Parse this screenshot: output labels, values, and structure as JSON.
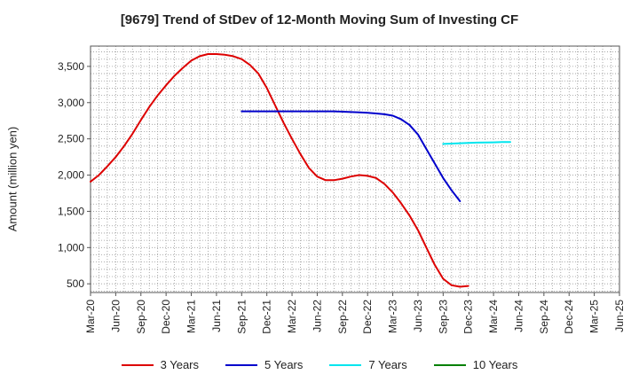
{
  "chart_data": {
    "type": "line",
    "title": "[9679]  Trend of StDev of 12-Month Moving Sum of Investing CF",
    "xlabel": "",
    "ylabel": "Amount (million yen)",
    "ylim": [
      380,
      3780
    ],
    "yticks": [
      500,
      1000,
      1500,
      2000,
      2500,
      3000,
      3500
    ],
    "ytick_labels": [
      "500",
      "1,000",
      "1,500",
      "2,000",
      "2,500",
      "3,000",
      "3,500"
    ],
    "x_categories": [
      "Mar-20",
      "Jun-20",
      "Sep-20",
      "Dec-20",
      "Mar-21",
      "Jun-21",
      "Sep-21",
      "Dec-21",
      "Mar-22",
      "Jun-22",
      "Sep-22",
      "Dec-22",
      "Mar-23",
      "Jun-23",
      "Sep-23",
      "Dec-23",
      "Mar-24",
      "Jun-24",
      "Sep-24",
      "Dec-24",
      "Mar-25",
      "Jun-25"
    ],
    "grid": true,
    "legend_position": "bottom",
    "series": [
      {
        "name": "3 Years",
        "color": "#dd0000",
        "start_index": 0,
        "values": [
          1910,
          2000,
          2120,
          2250,
          2400,
          2570,
          2760,
          2940,
          3100,
          3240,
          3370,
          3480,
          3580,
          3640,
          3670,
          3670,
          3660,
          3640,
          3600,
          3520,
          3400,
          3200,
          2960,
          2720,
          2500,
          2290,
          2100,
          1980,
          1930,
          1930,
          1950,
          1980,
          2000,
          1990,
          1960,
          1880,
          1760,
          1610,
          1440,
          1240,
          1000,
          760,
          570,
          480,
          460,
          470
        ]
      },
      {
        "name": "5 Years",
        "color": "#0000cc",
        "start_index": 18,
        "values": [
          2880,
          2880,
          2880,
          2880,
          2880,
          2880,
          2880,
          2880,
          2880,
          2880,
          2880,
          2880,
          2875,
          2870,
          2865,
          2860,
          2850,
          2840,
          2820,
          2770,
          2690,
          2560,
          2360,
          2160,
          1960,
          1790,
          1640
        ]
      },
      {
        "name": "7 Years",
        "color": "#00e5ee",
        "start_index": 42,
        "values": [
          2430,
          2435,
          2440,
          2445,
          2448,
          2450,
          2452,
          2455,
          2455
        ]
      },
      {
        "name": "10 Years",
        "color": "#008000",
        "start_index": 0,
        "values": []
      }
    ]
  }
}
